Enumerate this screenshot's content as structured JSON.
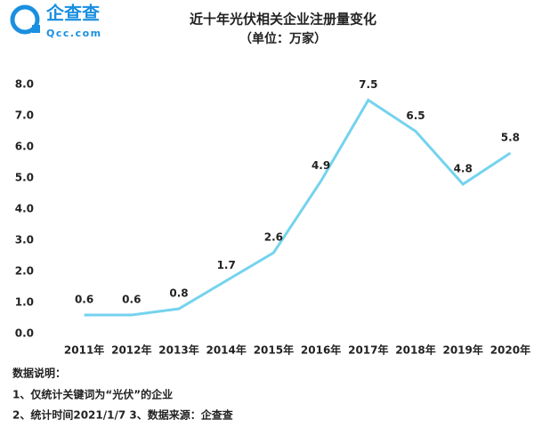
{
  "logo": {
    "name": "企查查",
    "site": "Qcc.com"
  },
  "chart_data": {
    "type": "line",
    "title": "近十年光伏相关企业注册量变化",
    "subtitle": "（单位：万家）",
    "categories": [
      "2011年",
      "2012年",
      "2013年",
      "2014年",
      "2015年",
      "2016年",
      "2017年",
      "2018年",
      "2019年",
      "2020年"
    ],
    "series": [
      {
        "color": "#74d3ee",
        "values": [
          0.6,
          0.6,
          0.8,
          1.7,
          2.6,
          4.9,
          7.5,
          6.5,
          4.8,
          5.8
        ]
      }
    ],
    "ylim": [
      0,
      8
    ],
    "yticks": [
      {
        "value": 0,
        "label": "0.0"
      },
      {
        "value": 1,
        "label": "1.0"
      },
      {
        "value": 2,
        "label": "2.0"
      },
      {
        "value": 3,
        "label": "3.0"
      },
      {
        "value": 4,
        "label": "4.0"
      },
      {
        "value": 5,
        "label": "5.0"
      },
      {
        "value": 6,
        "label": "6.0"
      },
      {
        "value": 7,
        "label": "7.0"
      },
      {
        "value": 8,
        "label": "8.0"
      }
    ],
    "grid": false,
    "notes": [
      "数据说明：",
      "1、仅统计关键词为“光伏”的企业",
      "2、统计时间2021/1/7  3、数据来源：企查查"
    ]
  }
}
